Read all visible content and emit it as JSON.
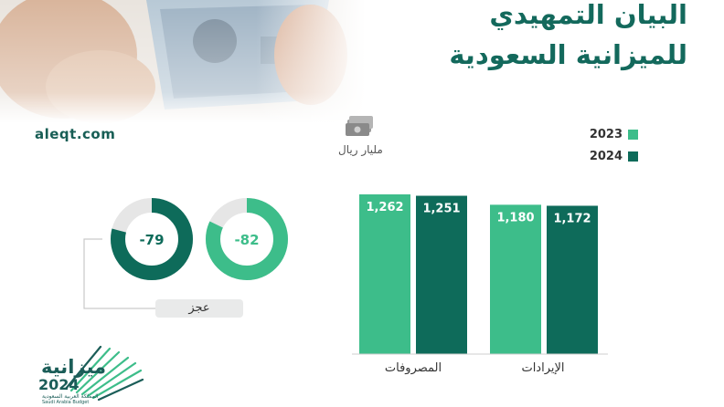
{
  "header": {
    "title_line1": "البيان التمهيدي",
    "title_line2": "للميزانية السعودية",
    "site": "aleqt.com"
  },
  "unit": {
    "label": "مليار ريال",
    "icon": "money-stack-icon"
  },
  "legend": [
    {
      "label": "2023",
      "color": "#3dbd8a"
    },
    {
      "label": "2024",
      "color": "#0e6b5a"
    }
  ],
  "deficit": {
    "label": "عجز",
    "values": [
      "-82",
      "-79"
    ]
  },
  "logo": {
    "word": "ميزانية",
    "year": "2024",
    "sub_ar": "المملكة العربية السعودية",
    "sub_en": "Saudi Arabia Budget"
  },
  "chart_data": [
    {
      "type": "bar",
      "categories": [
        "المصروفات",
        "الإيرادات"
      ],
      "series": [
        {
          "name": "2023",
          "values": [
            1262,
            1180
          ],
          "labels": [
            "1,262",
            "1,180"
          ]
        },
        {
          "name": "2024",
          "values": [
            1251,
            1172
          ],
          "labels": [
            "1,251",
            "1,172"
          ]
        }
      ],
      "ylim": [
        0,
        1262
      ]
    },
    {
      "type": "pie",
      "title": "عجز",
      "series": [
        {
          "name": "2023",
          "values": [
            -82
          ],
          "labels": [
            "-82"
          ]
        },
        {
          "name": "2024",
          "values": [
            -79
          ],
          "labels": [
            "-79"
          ]
        }
      ]
    }
  ]
}
